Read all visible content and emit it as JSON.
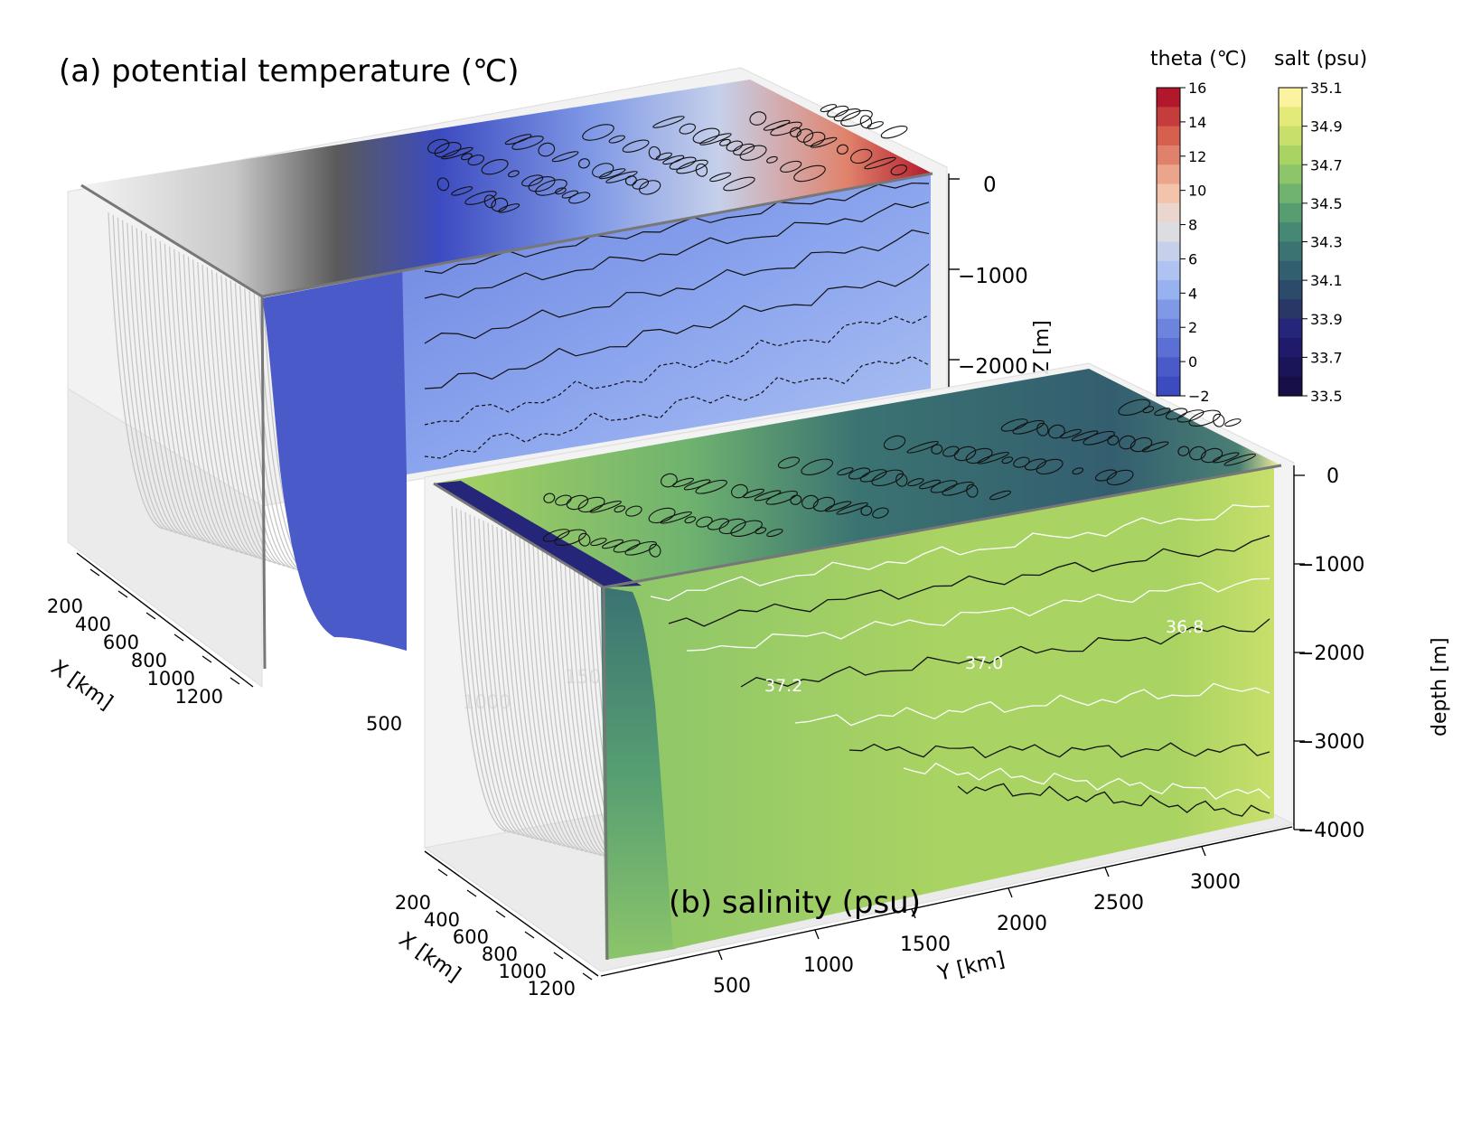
{
  "panel_a": {
    "title": "(a) potential temperature (℃)",
    "xaxis": {
      "label": "X [km]",
      "ticks": [
        "200",
        "400",
        "600",
        "800",
        "1000",
        "1200"
      ]
    },
    "yaxis": {
      "ticks": [
        "500",
        "1000",
        "1500"
      ]
    },
    "zaxis": {
      "label": "Z [m]",
      "ticks": [
        "0",
        "−1000",
        "−2000"
      ]
    }
  },
  "panel_b": {
    "title": "(b) salinity (psu)",
    "xaxis": {
      "label": "X [km]",
      "ticks": [
        "200",
        "400",
        "600",
        "800",
        "1000",
        "1200"
      ]
    },
    "yaxis": {
      "label": "Y [km]",
      "ticks": [
        "500",
        "1000",
        "1500",
        "2000",
        "2500",
        "3000"
      ]
    },
    "zaxis": {
      "label": "depth [m]",
      "ticks": [
        "0",
        "−1000",
        "−2000",
        "−3000",
        "−4000"
      ]
    },
    "contour_labels": [
      "37.2",
      "37.0",
      "36.8"
    ]
  },
  "colorbars": {
    "theta": {
      "title": "theta (℃)",
      "ticks": [
        "16",
        "14",
        "12",
        "10",
        "8",
        "6",
        "4",
        "2",
        "0",
        "−2"
      ],
      "colors": [
        "#b2182b",
        "#c43c3c",
        "#d6604d",
        "#e0826b",
        "#eaa58c",
        "#f4c3ac",
        "#ead6cc",
        "#dcdde2",
        "#c6d0ea",
        "#afc3f2",
        "#98b1f0",
        "#8099e6",
        "#6d84de",
        "#5b6fd4",
        "#4a5ac9",
        "#3c4bc0"
      ]
    },
    "salt": {
      "title": "salt (psu)",
      "ticks": [
        "35.1",
        "34.9",
        "34.7",
        "34.5",
        "34.3",
        "34.1",
        "33.9",
        "33.7",
        "33.5"
      ],
      "colors": [
        "#fbf3a0",
        "#e4ea7a",
        "#c8df6b",
        "#a9d362",
        "#8cc56a",
        "#6fb36f",
        "#569e72",
        "#458873",
        "#3b7372",
        "#335e6f",
        "#2c4a6a",
        "#283766",
        "#25267a",
        "#1f1a6a",
        "#1a1458",
        "#160f48"
      ]
    }
  }
}
